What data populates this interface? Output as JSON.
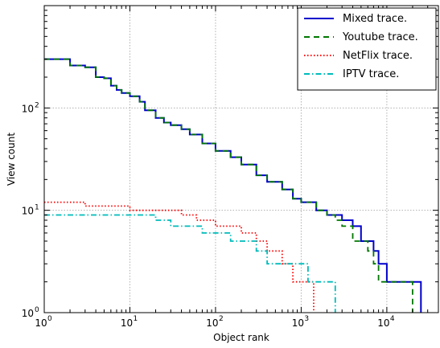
{
  "chart_data": {
    "type": "line",
    "title": "",
    "xlabel": "Object rank",
    "ylabel": "View count",
    "xscale": "log",
    "yscale": "log",
    "xlim": [
      1,
      40000
    ],
    "ylim": [
      1,
      1000
    ],
    "grid": true,
    "legend_position": "top-right",
    "x_ticks": [
      {
        "value": 1,
        "base": "10",
        "exp": "0"
      },
      {
        "value": 10,
        "base": "10",
        "exp": "1"
      },
      {
        "value": 100,
        "base": "10",
        "exp": "2"
      },
      {
        "value": 1000,
        "base": "10",
        "exp": "3"
      },
      {
        "value": 10000,
        "base": "10",
        "exp": "4"
      }
    ],
    "y_ticks": [
      {
        "value": 1,
        "base": "10",
        "exp": "0"
      },
      {
        "value": 10,
        "base": "10",
        "exp": "1"
      },
      {
        "value": 100,
        "base": "10",
        "exp": "2"
      }
    ],
    "series": [
      {
        "name": "Mixed trace.",
        "color": "#0000cc",
        "dash": "solid",
        "points": [
          [
            1,
            300
          ],
          [
            2,
            260
          ],
          [
            3,
            250
          ],
          [
            4,
            200
          ],
          [
            5,
            195
          ],
          [
            6,
            165
          ],
          [
            7,
            150
          ],
          [
            8,
            140
          ],
          [
            10,
            130
          ],
          [
            13,
            115
          ],
          [
            15,
            95
          ],
          [
            20,
            80
          ],
          [
            25,
            72
          ],
          [
            30,
            68
          ],
          [
            40,
            62
          ],
          [
            50,
            55
          ],
          [
            70,
            45
          ],
          [
            100,
            38
          ],
          [
            150,
            33
          ],
          [
            200,
            28
          ],
          [
            300,
            22
          ],
          [
            400,
            19
          ],
          [
            600,
            16
          ],
          [
            800,
            13
          ],
          [
            1000,
            12
          ],
          [
            1500,
            10
          ],
          [
            2000,
            9
          ],
          [
            3000,
            8
          ],
          [
            4000,
            7
          ],
          [
            5000,
            5
          ],
          [
            7000,
            4
          ],
          [
            8000,
            3
          ],
          [
            10000,
            2
          ],
          [
            20000,
            2
          ],
          [
            25000,
            1
          ]
        ]
      },
      {
        "name": "Youtube trace.",
        "color": "#007700",
        "dash": "dashed",
        "points": [
          [
            1,
            300
          ],
          [
            2,
            260
          ],
          [
            3,
            250
          ],
          [
            4,
            200
          ],
          [
            5,
            195
          ],
          [
            6,
            165
          ],
          [
            7,
            150
          ],
          [
            8,
            140
          ],
          [
            10,
            130
          ],
          [
            13,
            115
          ],
          [
            15,
            95
          ],
          [
            20,
            80
          ],
          [
            25,
            72
          ],
          [
            30,
            68
          ],
          [
            40,
            62
          ],
          [
            50,
            55
          ],
          [
            70,
            45
          ],
          [
            100,
            38
          ],
          [
            150,
            33
          ],
          [
            200,
            28
          ],
          [
            300,
            22
          ],
          [
            400,
            19
          ],
          [
            600,
            16
          ],
          [
            800,
            13
          ],
          [
            1000,
            12
          ],
          [
            1500,
            10
          ],
          [
            2000,
            9
          ],
          [
            2500,
            8
          ],
          [
            3000,
            7
          ],
          [
            4000,
            5
          ],
          [
            6000,
            4
          ],
          [
            7000,
            3
          ],
          [
            8000,
            2
          ],
          [
            20000,
            1
          ]
        ]
      },
      {
        "name": "NetFlix trace.",
        "color": "#ff0000",
        "dash": "dotted",
        "points": [
          [
            1,
            12
          ],
          [
            3,
            11
          ],
          [
            5,
            11
          ],
          [
            10,
            10
          ],
          [
            20,
            10
          ],
          [
            40,
            9
          ],
          [
            60,
            8
          ],
          [
            100,
            7
          ],
          [
            200,
            6
          ],
          [
            300,
            5
          ],
          [
            400,
            4
          ],
          [
            600,
            3
          ],
          [
            800,
            2
          ],
          [
            1000,
            2
          ],
          [
            1400,
            1
          ]
        ]
      },
      {
        "name": "IPTV trace.",
        "color": "#00bbbb",
        "dash": "dashdot",
        "points": [
          [
            1,
            9
          ],
          [
            10,
            9
          ],
          [
            20,
            8
          ],
          [
            30,
            7
          ],
          [
            70,
            6
          ],
          [
            150,
            5
          ],
          [
            300,
            4
          ],
          [
            400,
            3
          ],
          [
            1000,
            3
          ],
          [
            1200,
            2
          ],
          [
            2000,
            2
          ],
          [
            2500,
            1
          ]
        ]
      }
    ]
  }
}
